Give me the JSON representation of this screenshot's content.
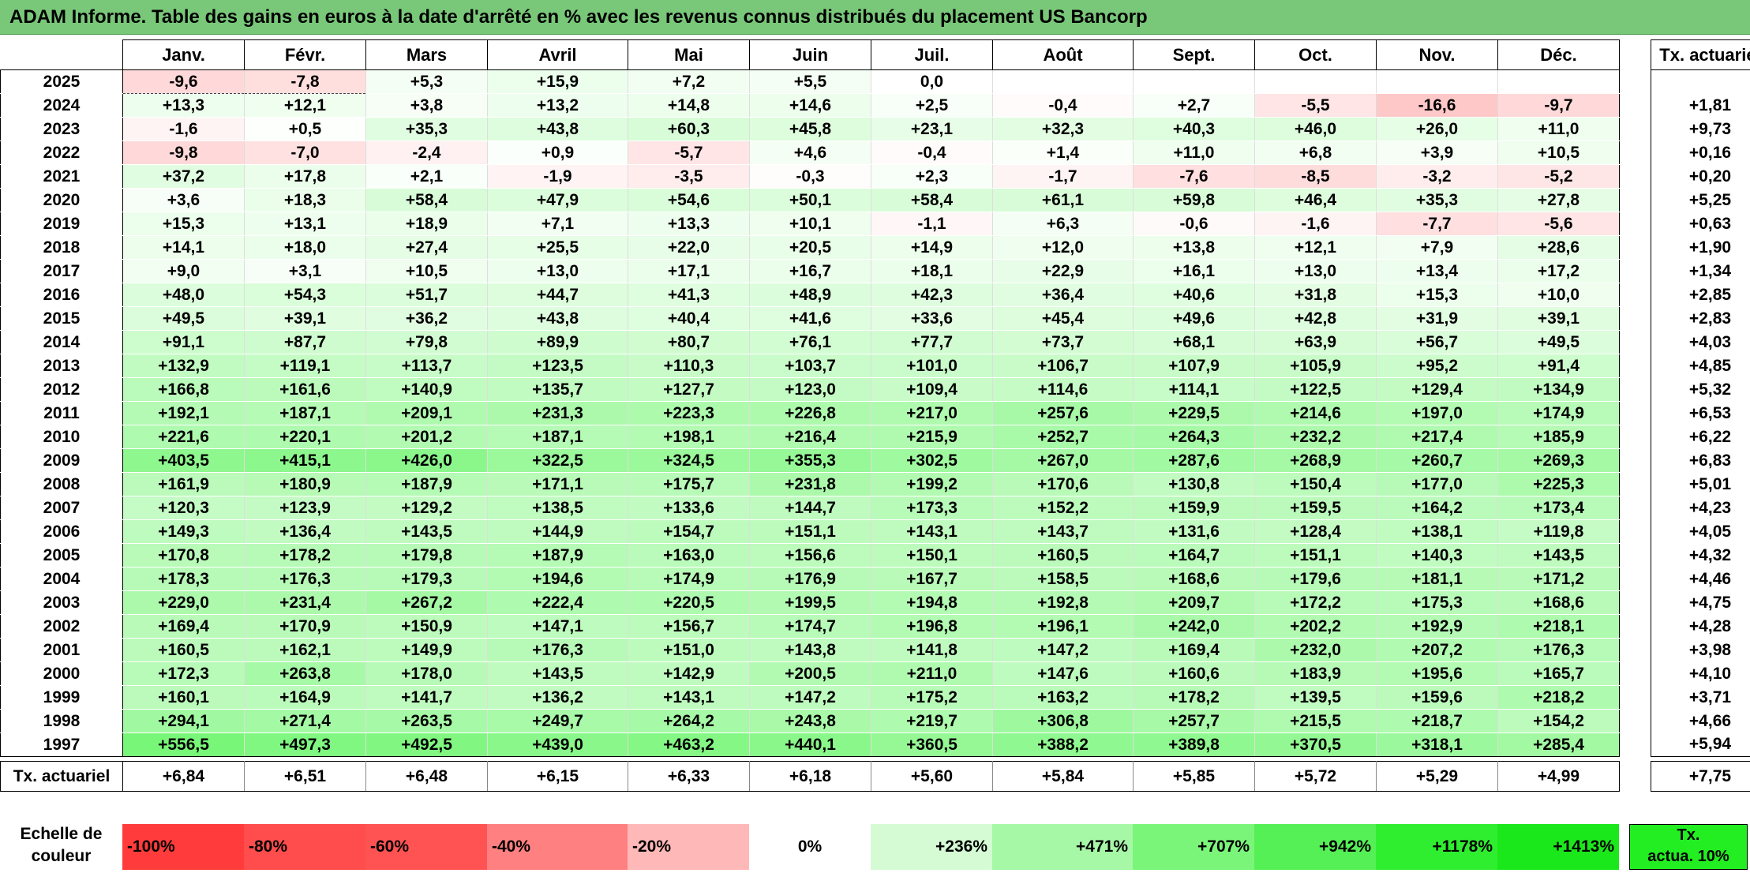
{
  "title": "ADAM Informe. Table des gains en euros à la date d'arrêté en % avec les revenus connus distribués du placement US Bancorp",
  "colors": {
    "title_bg": "#79c879",
    "negative_max": "#ff3333",
    "positive_max": "#22ee22"
  },
  "chart_data": {
    "type": "heatmap",
    "title": "ADAM Informe. Table des gains en euros à la date d'arrêté en % avec les revenus connus distribués du placement US Bancorp",
    "columns": [
      "Janv.",
      "Févr.",
      "Mars",
      "Avril",
      "Mai",
      "Juin",
      "Juil.",
      "Août",
      "Sept.",
      "Oct.",
      "Nov.",
      "Déc."
    ],
    "rate_header": "Tx. actuariel",
    "rows": [
      {
        "year": "2025",
        "values": [
          "-9,6",
          "-7,8",
          "+5,3",
          "+15,9",
          "+7,2",
          "+5,5",
          "0,0",
          "",
          "",
          "",
          "",
          ""
        ],
        "rate": ""
      },
      {
        "year": "2024",
        "values": [
          "+13,3",
          "+12,1",
          "+3,8",
          "+13,2",
          "+14,8",
          "+14,6",
          "+2,5",
          "-0,4",
          "+2,7",
          "-5,5",
          "-16,6",
          "-9,7"
        ],
        "rate": "+1,81"
      },
      {
        "year": "2023",
        "values": [
          "-1,6",
          "+0,5",
          "+35,3",
          "+43,8",
          "+60,3",
          "+45,8",
          "+23,1",
          "+32,3",
          "+40,3",
          "+46,0",
          "+26,0",
          "+11,0"
        ],
        "rate": "+9,73"
      },
      {
        "year": "2022",
        "values": [
          "-9,8",
          "-7,0",
          "-2,4",
          "+0,9",
          "-5,7",
          "+4,6",
          "-0,4",
          "+1,4",
          "+11,0",
          "+6,8",
          "+3,9",
          "+10,5"
        ],
        "rate": "+0,16"
      },
      {
        "year": "2021",
        "values": [
          "+37,2",
          "+17,8",
          "+2,1",
          "-1,9",
          "-3,5",
          "-0,3",
          "+2,3",
          "-1,7",
          "-7,6",
          "-8,5",
          "-3,2",
          "-5,2"
        ],
        "rate": "+0,20"
      },
      {
        "year": "2020",
        "values": [
          "+3,6",
          "+18,3",
          "+58,4",
          "+47,9",
          "+54,6",
          "+50,1",
          "+58,4",
          "+61,1",
          "+59,8",
          "+46,4",
          "+35,3",
          "+27,8"
        ],
        "rate": "+5,25"
      },
      {
        "year": "2019",
        "values": [
          "+15,3",
          "+13,1",
          "+18,9",
          "+7,1",
          "+13,3",
          "+10,1",
          "-1,1",
          "+6,3",
          "-0,6",
          "-1,6",
          "-7,7",
          "-5,6"
        ],
        "rate": "+0,63"
      },
      {
        "year": "2018",
        "values": [
          "+14,1",
          "+18,0",
          "+27,4",
          "+25,5",
          "+22,0",
          "+20,5",
          "+14,9",
          "+12,0",
          "+13,8",
          "+12,1",
          "+7,9",
          "+28,6"
        ],
        "rate": "+1,90"
      },
      {
        "year": "2017",
        "values": [
          "+9,0",
          "+3,1",
          "+10,5",
          "+13,0",
          "+17,1",
          "+16,7",
          "+18,1",
          "+22,9",
          "+16,1",
          "+13,0",
          "+13,4",
          "+17,2"
        ],
        "rate": "+1,34"
      },
      {
        "year": "2016",
        "values": [
          "+48,0",
          "+54,3",
          "+51,7",
          "+44,7",
          "+41,3",
          "+48,9",
          "+42,3",
          "+36,4",
          "+40,6",
          "+31,8",
          "+15,3",
          "+10,0"
        ],
        "rate": "+2,85"
      },
      {
        "year": "2015",
        "values": [
          "+49,5",
          "+39,1",
          "+36,2",
          "+43,8",
          "+40,4",
          "+41,6",
          "+33,6",
          "+45,4",
          "+49,6",
          "+42,8",
          "+31,9",
          "+39,1"
        ],
        "rate": "+2,83"
      },
      {
        "year": "2014",
        "values": [
          "+91,1",
          "+87,7",
          "+79,8",
          "+89,9",
          "+80,7",
          "+76,1",
          "+77,7",
          "+73,7",
          "+68,1",
          "+63,9",
          "+56,7",
          "+49,5"
        ],
        "rate": "+4,03"
      },
      {
        "year": "2013",
        "values": [
          "+132,9",
          "+119,1",
          "+113,7",
          "+123,5",
          "+110,3",
          "+103,7",
          "+101,0",
          "+106,7",
          "+107,9",
          "+105,9",
          "+95,2",
          "+91,4"
        ],
        "rate": "+4,85"
      },
      {
        "year": "2012",
        "values": [
          "+166,8",
          "+161,6",
          "+140,9",
          "+135,7",
          "+127,7",
          "+123,0",
          "+109,4",
          "+114,6",
          "+114,1",
          "+122,5",
          "+129,4",
          "+134,9"
        ],
        "rate": "+5,32"
      },
      {
        "year": "2011",
        "values": [
          "+192,1",
          "+187,1",
          "+209,1",
          "+231,3",
          "+223,3",
          "+226,8",
          "+217,0",
          "+257,6",
          "+229,5",
          "+214,6",
          "+197,0",
          "+174,9"
        ],
        "rate": "+6,53"
      },
      {
        "year": "2010",
        "values": [
          "+221,6",
          "+220,1",
          "+201,2",
          "+187,1",
          "+198,1",
          "+216,4",
          "+215,9",
          "+252,7",
          "+264,3",
          "+232,2",
          "+217,4",
          "+185,9"
        ],
        "rate": "+6,22"
      },
      {
        "year": "2009",
        "values": [
          "+403,5",
          "+415,1",
          "+426,0",
          "+322,5",
          "+324,5",
          "+355,3",
          "+302,5",
          "+267,0",
          "+287,6",
          "+268,9",
          "+260,7",
          "+269,3"
        ],
        "rate": "+6,83"
      },
      {
        "year": "2008",
        "values": [
          "+161,9",
          "+180,9",
          "+187,9",
          "+171,1",
          "+175,7",
          "+231,8",
          "+199,2",
          "+170,6",
          "+130,8",
          "+150,4",
          "+177,0",
          "+225,3"
        ],
        "rate": "+5,01"
      },
      {
        "year": "2007",
        "values": [
          "+120,3",
          "+123,9",
          "+129,2",
          "+138,5",
          "+133,6",
          "+144,7",
          "+173,3",
          "+152,2",
          "+159,9",
          "+159,5",
          "+164,2",
          "+173,4"
        ],
        "rate": "+4,23"
      },
      {
        "year": "2006",
        "values": [
          "+149,3",
          "+136,4",
          "+143,5",
          "+144,9",
          "+154,7",
          "+151,1",
          "+143,1",
          "+143,7",
          "+131,6",
          "+128,4",
          "+138,1",
          "+119,8"
        ],
        "rate": "+4,05"
      },
      {
        "year": "2005",
        "values": [
          "+170,8",
          "+178,2",
          "+179,8",
          "+187,9",
          "+163,0",
          "+156,6",
          "+150,1",
          "+160,5",
          "+164,7",
          "+151,1",
          "+140,3",
          "+143,5"
        ],
        "rate": "+4,32"
      },
      {
        "year": "2004",
        "values": [
          "+178,3",
          "+176,3",
          "+179,3",
          "+194,6",
          "+174,9",
          "+176,9",
          "+167,7",
          "+158,5",
          "+168,6",
          "+179,6",
          "+181,1",
          "+171,2"
        ],
        "rate": "+4,46"
      },
      {
        "year": "2003",
        "values": [
          "+229,0",
          "+231,4",
          "+267,2",
          "+222,4",
          "+220,5",
          "+199,5",
          "+194,8",
          "+192,8",
          "+209,7",
          "+172,2",
          "+175,3",
          "+168,6"
        ],
        "rate": "+4,75"
      },
      {
        "year": "2002",
        "values": [
          "+169,4",
          "+170,9",
          "+150,9",
          "+147,1",
          "+156,7",
          "+174,7",
          "+196,8",
          "+196,1",
          "+242,0",
          "+202,2",
          "+192,9",
          "+218,1"
        ],
        "rate": "+4,28"
      },
      {
        "year": "2001",
        "values": [
          "+160,5",
          "+162,1",
          "+149,9",
          "+176,3",
          "+151,0",
          "+143,8",
          "+141,8",
          "+147,2",
          "+169,4",
          "+232,0",
          "+207,2",
          "+176,3"
        ],
        "rate": "+3,98"
      },
      {
        "year": "2000",
        "values": [
          "+172,3",
          "+263,8",
          "+178,0",
          "+143,5",
          "+142,9",
          "+200,5",
          "+211,0",
          "+147,6",
          "+160,6",
          "+183,9",
          "+195,6",
          "+165,7"
        ],
        "rate": "+4,10"
      },
      {
        "year": "1999",
        "values": [
          "+160,1",
          "+164,9",
          "+141,7",
          "+136,2",
          "+143,1",
          "+147,2",
          "+175,2",
          "+163,2",
          "+178,2",
          "+139,5",
          "+159,6",
          "+218,2"
        ],
        "rate": "+3,71"
      },
      {
        "year": "1998",
        "values": [
          "+294,1",
          "+271,4",
          "+263,5",
          "+249,7",
          "+264,2",
          "+243,8",
          "+219,7",
          "+306,8",
          "+257,7",
          "+215,5",
          "+218,7",
          "+154,2"
        ],
        "rate": "+4,66"
      },
      {
        "year": "1997",
        "values": [
          "+556,5",
          "+497,3",
          "+492,5",
          "+439,0",
          "+463,2",
          "+440,1",
          "+360,5",
          "+388,2",
          "+389,8",
          "+370,5",
          "+318,1",
          "+285,4"
        ],
        "rate": "+5,94"
      }
    ],
    "totals": {
      "label": "Tx. actuariel",
      "values": [
        "+6,84",
        "+6,51",
        "+6,48",
        "+6,15",
        "+6,33",
        "+6,18",
        "+5,60",
        "+5,84",
        "+5,85",
        "+5,72",
        "+5,29",
        "+4,99"
      ],
      "overall": "+7,75"
    },
    "scale": {
      "label_line1": "Echelle de",
      "label_line2": "couleur",
      "steps": [
        "-100%",
        "-80%",
        "-60%",
        "-40%",
        "-20%",
        "0%",
        "+236%",
        "+471%",
        "+707%",
        "+942%",
        "+1178%",
        "+1413%"
      ],
      "target_line1": "Tx.",
      "target_line2": "actua. 10%"
    }
  }
}
